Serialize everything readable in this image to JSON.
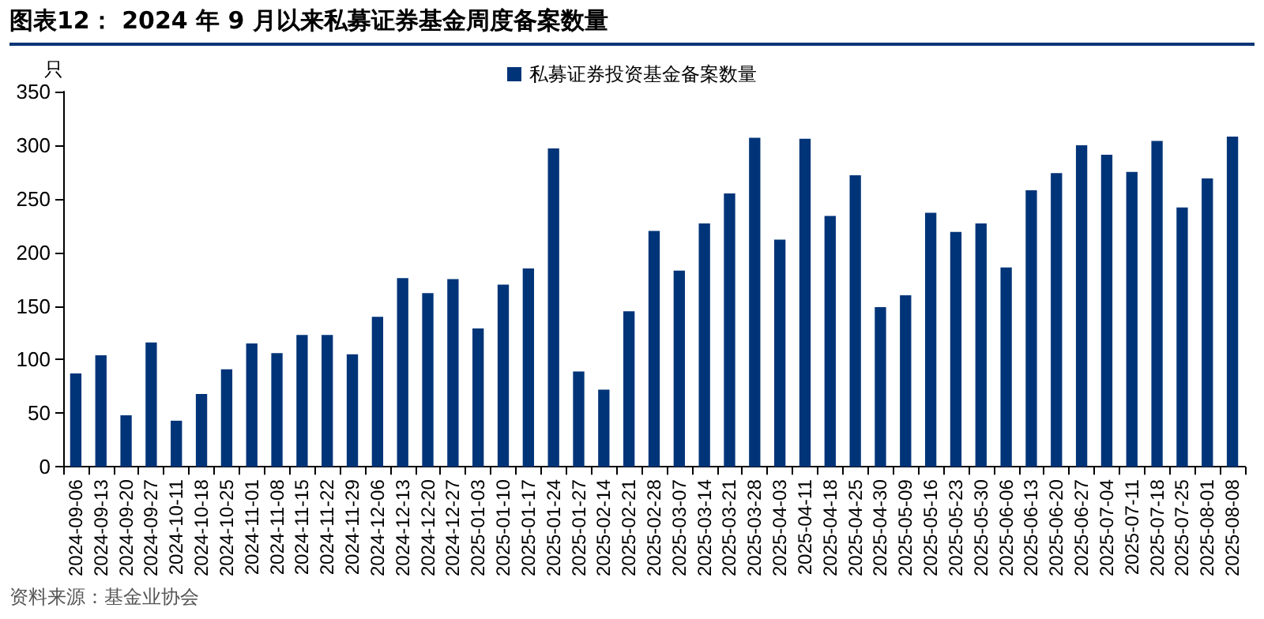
{
  "chart_data": {
    "type": "bar",
    "title": "图表12：  2024 年 9 月以来私募证券基金周度备案数量",
    "ylabel": "只",
    "annotations": [
      "资料来源：基金业协会"
    ],
    "categories": [
      "2024-09-06",
      "2024-09-13",
      "2024-09-20",
      "2024-09-27",
      "2024-10-11",
      "2024-10-18",
      "2024-10-25",
      "2024-11-01",
      "2024-11-08",
      "2024-11-15",
      "2024-11-22",
      "2024-11-29",
      "2024-12-06",
      "2024-12-13",
      "2024-12-20",
      "2024-12-27",
      "2025-01-03",
      "2025-01-10",
      "2025-01-17",
      "2025-01-24",
      "2025-01-27",
      "2025-02-14",
      "2025-02-21",
      "2025-02-28",
      "2025-03-07",
      "2025-03-14",
      "2025-03-21",
      "2025-03-28",
      "2025-04-03",
      "2025-04-11",
      "2025-04-18",
      "2025-04-25",
      "2025-04-30",
      "2025-05-09",
      "2025-05-16",
      "2025-05-23",
      "2025-05-30",
      "2025-06-06",
      "2025-06-13",
      "2025-06-20",
      "2025-06-27",
      "2025-07-04",
      "2025-07-11",
      "2025-07-18",
      "2025-07-25",
      "2025-08-01",
      "2025-08-08"
    ],
    "series": [
      {
        "name": "私募证券投资基金备案数量",
        "color": "#003478",
        "values": [
          87,
          104,
          48,
          116,
          43,
          68,
          91,
          115,
          106,
          123,
          123,
          105,
          140,
          176,
          162,
          175,
          129,
          170,
          185,
          297,
          89,
          72,
          145,
          220,
          183,
          227,
          255,
          307,
          212,
          306,
          234,
          272,
          149,
          160,
          237,
          219,
          227,
          186,
          258,
          274,
          300,
          291,
          275,
          304,
          242,
          269,
          308
        ]
      }
    ],
    "ylim": [
      0,
      350
    ],
    "yticks": [
      0,
      50,
      100,
      150,
      200,
      250,
      300,
      350
    ],
    "grid": false,
    "legend": "top"
  }
}
